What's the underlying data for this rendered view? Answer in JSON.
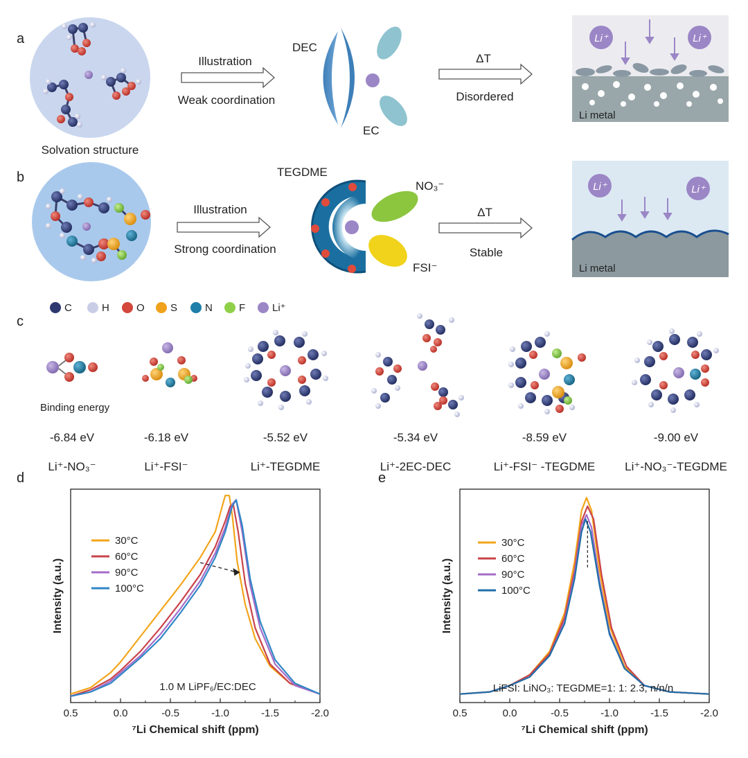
{
  "panels": {
    "a": "a",
    "b": "b",
    "c": "c",
    "d": "d",
    "e": "e"
  },
  "row_a": {
    "caption": "Solvation structure",
    "arrow_top": "Illustration",
    "arrow_bottom": "Weak coordination",
    "dec": "DEC",
    "ec": "EC",
    "dt": "ΔT",
    "dt_bottom": "Disordered",
    "li_ion": "Li⁺",
    "li_metal": "Li metal"
  },
  "row_b": {
    "arrow_top": "Illustration",
    "arrow_bottom": "Strong coordination",
    "tegdme": "TEGDME",
    "no3": "NO₃⁻",
    "fsi": "FSI⁻",
    "dt": "ΔT",
    "dt_bottom": "Stable",
    "li_ion": "Li⁺",
    "li_metal": "Li metal"
  },
  "legend_atoms": [
    {
      "label": "C",
      "color": "#2d3870"
    },
    {
      "label": "H",
      "color": "#c9cde6"
    },
    {
      "label": "O",
      "color": "#d3473d"
    },
    {
      "label": "S",
      "color": "#f0a21c"
    },
    {
      "label": "N",
      "color": "#1f7fa8"
    },
    {
      "label": "F",
      "color": "#8fd048"
    },
    {
      "label": "Li⁺",
      "color": "#9b86c6"
    }
  ],
  "binding": {
    "label": "Binding energy",
    "items": [
      {
        "energy": "-6.84 eV",
        "name": "Li⁺-NO₃⁻"
      },
      {
        "energy": "-6.18 eV",
        "name": "Li⁺-FSI⁻"
      },
      {
        "energy": "-5.52 eV",
        "name": "Li⁺-TEGDME"
      },
      {
        "energy": "-5.34 eV",
        "name": "Li⁺-2EC-DEC"
      },
      {
        "energy": "-8.59 eV",
        "name": "Li⁺-FSI⁻ -TEGDME"
      },
      {
        "energy": "-9.00 eV",
        "name": "Li⁺-NO₃⁻-TEGDME"
      }
    ]
  },
  "chart_data": [
    {
      "type": "line",
      "panel": "d",
      "xlabel": "⁷Li Chemical shift (ppm)",
      "ylabel": "Intensity (a.u.)",
      "xlim": [
        0.5,
        -2.0
      ],
      "xticks": [
        "0.5",
        "0.0",
        "-0.5",
        "-1.0",
        "-1.5",
        "-2.0"
      ],
      "annotation": "1.0 M LiPF₆/EC:DEC",
      "legend_position": "top-left",
      "series": [
        {
          "name": "30°C",
          "color": "#f2a51a",
          "points": [
            [
              0.5,
              0.04
            ],
            [
              0.3,
              0.07
            ],
            [
              0.1,
              0.14
            ],
            [
              0.0,
              0.19
            ],
            [
              -0.2,
              0.31
            ],
            [
              -0.4,
              0.43
            ],
            [
              -0.6,
              0.55
            ],
            [
              -0.8,
              0.68
            ],
            [
              -0.95,
              0.8
            ],
            [
              -1.02,
              0.92
            ],
            [
              -1.05,
              0.97
            ],
            [
              -1.09,
              0.97
            ],
            [
              -1.12,
              0.88
            ],
            [
              -1.17,
              0.66
            ],
            [
              -1.25,
              0.46
            ],
            [
              -1.35,
              0.3
            ],
            [
              -1.5,
              0.17
            ],
            [
              -1.7,
              0.09
            ],
            [
              -2.0,
              0.04
            ]
          ]
        },
        {
          "name": "60°C",
          "color": "#c9434a",
          "points": [
            [
              0.5,
              0.03
            ],
            [
              0.3,
              0.06
            ],
            [
              0.1,
              0.11
            ],
            [
              0.0,
              0.15
            ],
            [
              -0.2,
              0.24
            ],
            [
              -0.4,
              0.35
            ],
            [
              -0.6,
              0.47
            ],
            [
              -0.8,
              0.6
            ],
            [
              -0.95,
              0.73
            ],
            [
              -1.05,
              0.85
            ],
            [
              -1.1,
              0.92
            ],
            [
              -1.13,
              0.93
            ],
            [
              -1.18,
              0.8
            ],
            [
              -1.25,
              0.56
            ],
            [
              -1.35,
              0.35
            ],
            [
              -1.5,
              0.18
            ],
            [
              -1.7,
              0.09
            ],
            [
              -2.0,
              0.04
            ]
          ]
        },
        {
          "name": "90°C",
          "color": "#a46cc8",
          "points": [
            [
              0.5,
              0.03
            ],
            [
              0.3,
              0.05
            ],
            [
              0.1,
              0.1
            ],
            [
              0.0,
              0.14
            ],
            [
              -0.2,
              0.22
            ],
            [
              -0.4,
              0.32
            ],
            [
              -0.6,
              0.44
            ],
            [
              -0.8,
              0.57
            ],
            [
              -0.95,
              0.7
            ],
            [
              -1.05,
              0.82
            ],
            [
              -1.12,
              0.93
            ],
            [
              -1.16,
              0.95
            ],
            [
              -1.22,
              0.8
            ],
            [
              -1.3,
              0.55
            ],
            [
              -1.4,
              0.35
            ],
            [
              -1.55,
              0.18
            ],
            [
              -1.75,
              0.08
            ],
            [
              -2.0,
              0.04
            ]
          ]
        },
        {
          "name": "100°C",
          "color": "#2f86c6",
          "points": [
            [
              0.5,
              0.03
            ],
            [
              0.3,
              0.05
            ],
            [
              0.1,
              0.09
            ],
            [
              0.0,
              0.13
            ],
            [
              -0.2,
              0.21
            ],
            [
              -0.4,
              0.3
            ],
            [
              -0.6,
              0.42
            ],
            [
              -0.8,
              0.55
            ],
            [
              -0.95,
              0.68
            ],
            [
              -1.05,
              0.8
            ],
            [
              -1.12,
              0.92
            ],
            [
              -1.16,
              0.95
            ],
            [
              -1.22,
              0.83
            ],
            [
              -1.3,
              0.58
            ],
            [
              -1.4,
              0.38
            ],
            [
              -1.55,
              0.2
            ],
            [
              -1.75,
              0.09
            ],
            [
              -2.0,
              0.04
            ]
          ]
        }
      ]
    },
    {
      "type": "line",
      "panel": "e",
      "xlabel": "⁷Li Chemical shift (ppm)",
      "ylabel": "Intensity (a.u.)",
      "xlim": [
        0.5,
        -2.0
      ],
      "xticks": [
        "0.5",
        "0.0",
        "-0.5",
        "-1.0",
        "-1.5",
        "-2.0"
      ],
      "annotation": "LiFSI: LiNO₃: TEGDME=1: 1: 2.3, n/n/n",
      "legend_position": "top-left",
      "series": [
        {
          "name": "30°C",
          "color": "#f2a51a",
          "points": [
            [
              0.5,
              0.04
            ],
            [
              0.2,
              0.05
            ],
            [
              0.0,
              0.08
            ],
            [
              -0.2,
              0.13
            ],
            [
              -0.4,
              0.24
            ],
            [
              -0.55,
              0.42
            ],
            [
              -0.65,
              0.66
            ],
            [
              -0.72,
              0.9
            ],
            [
              -0.77,
              0.96
            ],
            [
              -0.82,
              0.9
            ],
            [
              -0.9,
              0.62
            ],
            [
              -1.0,
              0.36
            ],
            [
              -1.15,
              0.17
            ],
            [
              -1.35,
              0.08
            ],
            [
              -1.6,
              0.05
            ],
            [
              -2.0,
              0.04
            ]
          ]
        },
        {
          "name": "60°C",
          "color": "#c9434a",
          "points": [
            [
              0.5,
              0.04
            ],
            [
              0.2,
              0.05
            ],
            [
              0.0,
              0.08
            ],
            [
              -0.2,
              0.13
            ],
            [
              -0.4,
              0.23
            ],
            [
              -0.55,
              0.4
            ],
            [
              -0.65,
              0.62
            ],
            [
              -0.72,
              0.85
            ],
            [
              -0.78,
              0.92
            ],
            [
              -0.84,
              0.86
            ],
            [
              -0.92,
              0.6
            ],
            [
              -1.02,
              0.35
            ],
            [
              -1.17,
              0.17
            ],
            [
              -1.35,
              0.08
            ],
            [
              -1.6,
              0.05
            ],
            [
              -2.0,
              0.04
            ]
          ]
        },
        {
          "name": "90°C",
          "color": "#a46cc8",
          "points": [
            [
              0.5,
              0.04
            ],
            [
              0.2,
              0.05
            ],
            [
              0.0,
              0.08
            ],
            [
              -0.2,
              0.12
            ],
            [
              -0.4,
              0.22
            ],
            [
              -0.55,
              0.38
            ],
            [
              -0.65,
              0.6
            ],
            [
              -0.72,
              0.83
            ],
            [
              -0.77,
              0.88
            ],
            [
              -0.82,
              0.82
            ],
            [
              -0.9,
              0.57
            ],
            [
              -1.0,
              0.33
            ],
            [
              -1.15,
              0.16
            ],
            [
              -1.35,
              0.08
            ],
            [
              -1.6,
              0.05
            ],
            [
              -2.0,
              0.04
            ]
          ]
        },
        {
          "name": "100°C",
          "color": "#1f6fa8",
          "points": [
            [
              0.5,
              0.04
            ],
            [
              0.2,
              0.05
            ],
            [
              0.0,
              0.08
            ],
            [
              -0.2,
              0.12
            ],
            [
              -0.4,
              0.22
            ],
            [
              -0.55,
              0.37
            ],
            [
              -0.65,
              0.58
            ],
            [
              -0.72,
              0.8
            ],
            [
              -0.76,
              0.86
            ],
            [
              -0.81,
              0.8
            ],
            [
              -0.9,
              0.55
            ],
            [
              -1.0,
              0.32
            ],
            [
              -1.15,
              0.16
            ],
            [
              -1.35,
              0.08
            ],
            [
              -1.6,
              0.05
            ],
            [
              -2.0,
              0.04
            ]
          ]
        }
      ]
    }
  ]
}
